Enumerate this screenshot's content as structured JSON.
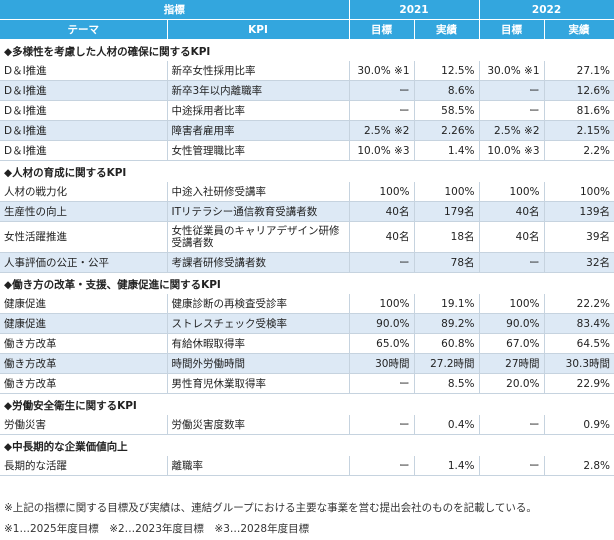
{
  "header": {
    "indicator": "指標",
    "theme": "テーマ",
    "kpi": "KPI",
    "year1": "2021",
    "year2": "2022",
    "target": "目標",
    "actual": "実績"
  },
  "sections": [
    {
      "title": "◆多様性を考慮した人材の確保に関するKPI",
      "rows": [
        {
          "theme": "D＆I推進",
          "kpi": "新卒女性採用比率",
          "t2021": "30.0% ※1",
          "a2021": "12.5%",
          "t2022": "30.0% ※1",
          "a2022": "27.1%"
        },
        {
          "theme": "D＆I推進",
          "kpi": "新卒3年以内離職率",
          "t2021": "ー",
          "a2021": "8.6%",
          "t2022": "ー",
          "a2022": "12.6%"
        },
        {
          "theme": "D＆I推進",
          "kpi": "中途採用者比率",
          "t2021": "ー",
          "a2021": "58.5%",
          "t2022": "ー",
          "a2022": "81.6%"
        },
        {
          "theme": "D＆I推進",
          "kpi": "障害者雇用率",
          "t2021": "2.5% ※2",
          "a2021": "2.26%",
          "t2022": "2.5% ※2",
          "a2022": "2.15%"
        },
        {
          "theme": "D＆I推進",
          "kpi": "女性管理職比率",
          "t2021": "10.0% ※3",
          "a2021": "1.4%",
          "t2022": "10.0% ※3",
          "a2022": "2.2%"
        }
      ]
    },
    {
      "title": "◆人材の育成に関するKPI",
      "rows": [
        {
          "theme": "人材の戦力化",
          "kpi": "中途入社研修受講率",
          "t2021": "100%",
          "a2021": "100%",
          "t2022": "100%",
          "a2022": "100%"
        },
        {
          "theme": "生産性の向上",
          "kpi": "ITリテラシー通信教育受講者数",
          "t2021": "40名",
          "a2021": "179名",
          "t2022": "40名",
          "a2022": "139名"
        },
        {
          "theme": "女性活躍推進",
          "kpi": "女性従業員のキャリアデザイン研修受講者数",
          "t2021": "40名",
          "a2021": "18名",
          "t2022": "40名",
          "a2022": "39名",
          "tall": true
        },
        {
          "theme": "人事評価の公正・公平",
          "kpi": "考課者研修受講者数",
          "t2021": "ー",
          "a2021": "78名",
          "t2022": "ー",
          "a2022": "32名"
        }
      ]
    },
    {
      "title": "◆働き方の改革・支援、健康促進に関するKPI",
      "rows": [
        {
          "theme": "健康促進",
          "kpi": "健康診断の再検査受診率",
          "t2021": "100%",
          "a2021": "19.1%",
          "t2022": "100%",
          "a2022": "22.2%"
        },
        {
          "theme": "健康促進",
          "kpi": "ストレスチェック受検率",
          "t2021": "90.0%",
          "a2021": "89.2%",
          "t2022": "90.0%",
          "a2022": "83.4%"
        },
        {
          "theme": "働き方改革",
          "kpi": "有給休暇取得率",
          "t2021": "65.0%",
          "a2021": "60.8%",
          "t2022": "67.0%",
          "a2022": "64.5%"
        },
        {
          "theme": "働き方改革",
          "kpi": "時間外労働時間",
          "t2021": "30時間",
          "a2021": "27.2時間",
          "t2022": "27時間",
          "a2022": "30.3時間"
        },
        {
          "theme": "働き方改革",
          "kpi": "男性育児休業取得率",
          "t2021": "ー",
          "a2021": "8.5%",
          "t2022": "20.0%",
          "a2022": "22.9%"
        }
      ]
    },
    {
      "title": "◆労働安全衛生に関するKPI",
      "rows": [
        {
          "theme": "労働災害",
          "kpi": "労働災害度数率",
          "t2021": "ー",
          "a2021": "0.4%",
          "t2022": "ー",
          "a2022": "0.9%"
        }
      ]
    },
    {
      "title": "◆中長期的な企業価値向上",
      "rows": [
        {
          "theme": "長期的な活躍",
          "kpi": "離職率",
          "t2021": "ー",
          "a2021": "1.4%",
          "t2022": "ー",
          "a2022": "2.8%"
        }
      ]
    }
  ],
  "notes": {
    "line1": "※上記の指標に関する目標及び実績は、連結グループにおける主要な事業を営む提出会社のものを記載している。",
    "line2": "※1…2025年度目標　※2…2023年度目標　※3…2028年度目標"
  },
  "colors": {
    "header_bg": "#33a6de",
    "row_shade": "#dde9f5"
  }
}
